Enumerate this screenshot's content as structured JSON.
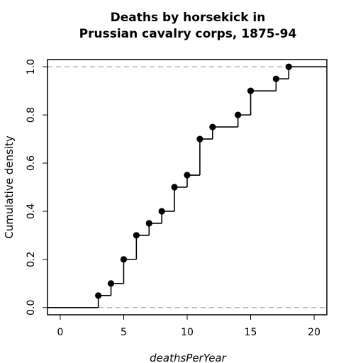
{
  "chart_data": {
    "type": "line",
    "subtype": "ecdf-step",
    "title_lines": [
      "Deaths by horsekick in",
      "Prussian cavalry corps, 1875-94"
    ],
    "xlabel": "deathsPerYear",
    "ylabel": "Cumulative density",
    "xlim": [
      -1,
      21
    ],
    "ylim": [
      -0.03,
      1.03
    ],
    "xticks": [
      0,
      5,
      10,
      15,
      20
    ],
    "xtick_labels": [
      "0",
      "5",
      "10",
      "15",
      "20"
    ],
    "yticks": [
      0.0,
      0.2,
      0.4,
      0.6,
      0.8,
      1.0
    ],
    "ytick_labels": [
      "0.0",
      "0.2",
      "0.4",
      "0.6",
      "0.8",
      "1.0"
    ],
    "reference_lines": [
      0,
      1
    ],
    "points": [
      {
        "x": 3,
        "y": 0.05
      },
      {
        "x": 4,
        "y": 0.1
      },
      {
        "x": 5,
        "y": 0.2
      },
      {
        "x": 6,
        "y": 0.3
      },
      {
        "x": 7,
        "y": 0.35
      },
      {
        "x": 8,
        "y": 0.4
      },
      {
        "x": 9,
        "y": 0.5
      },
      {
        "x": 10,
        "y": 0.55
      },
      {
        "x": 11,
        "y": 0.7
      },
      {
        "x": 12,
        "y": 0.75
      },
      {
        "x": 14,
        "y": 0.8
      },
      {
        "x": 15,
        "y": 0.9
      },
      {
        "x": 17,
        "y": 0.95
      },
      {
        "x": 18,
        "y": 1.0
      }
    ],
    "colors": {
      "line": "#000000",
      "reference": "#b3b3b3"
    }
  }
}
